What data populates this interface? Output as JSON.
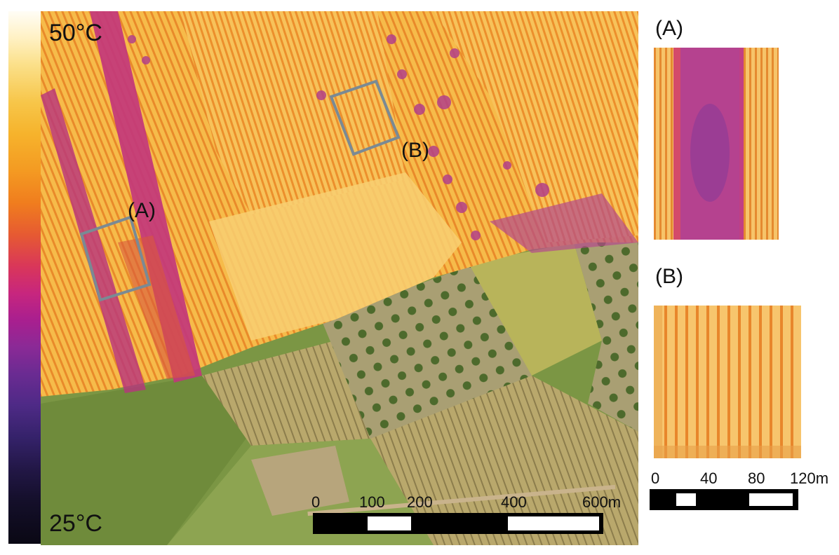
{
  "colorbar": {
    "max_label": "50°C",
    "min_label": "25°C"
  },
  "map": {
    "region_a_label": "(A)",
    "region_b_label": "(B)"
  },
  "main_scale": {
    "ticks": [
      "0",
      "100",
      "200",
      "400",
      "600m"
    ]
  },
  "insets": {
    "a_title": "(A)",
    "b_title": "(B)"
  },
  "inset_scale": {
    "ticks": [
      "0",
      "40",
      "80",
      "120m"
    ]
  },
  "colors": {
    "thermal_hot": "#fbd36a",
    "thermal_mid": "#f39a2a",
    "thermal_cool": "#a6318f",
    "roi_box": "#7a8a94",
    "vegetation": "#6e8a3e"
  }
}
